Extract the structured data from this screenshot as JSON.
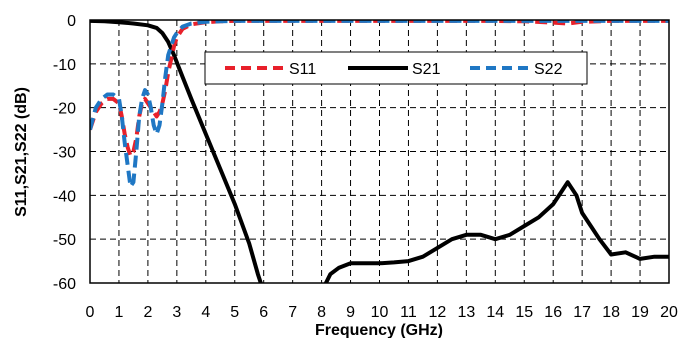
{
  "chart_data": {
    "type": "line",
    "xlabel": "Frequency (GHz)",
    "ylabel": "S11,S21,S22 (dB)",
    "xlim": [
      0,
      20
    ],
    "ylim": [
      -60,
      0
    ],
    "xticks": [
      0,
      1,
      2,
      3,
      4,
      5,
      6,
      7,
      8,
      9,
      10,
      11,
      12,
      13,
      14,
      15,
      16,
      17,
      18,
      19,
      20
    ],
    "yticks": [
      0,
      -10,
      -20,
      -30,
      -40,
      -50,
      -60
    ],
    "grid": true,
    "legend_position": "top-right",
    "series": [
      {
        "name": "S11",
        "color": "#e8202a",
        "style": "dashed",
        "x": [
          0,
          0.2,
          0.4,
          0.6,
          0.8,
          1.0,
          1.1,
          1.2,
          1.3,
          1.4,
          1.5,
          1.6,
          1.7,
          1.8,
          1.9,
          2.0,
          2.1,
          2.2,
          2.3,
          2.4,
          2.5,
          2.6,
          2.7,
          2.8,
          2.9,
          3.0,
          3.2,
          3.5,
          4.0,
          4.5,
          5,
          6,
          8,
          10,
          12,
          14,
          15,
          16,
          16.5,
          17,
          18,
          19,
          20
        ],
        "y": [
          -25,
          -21,
          -19,
          -18,
          -18,
          -19,
          -22,
          -26,
          -29,
          -31,
          -30,
          -27,
          -22,
          -19,
          -18,
          -19,
          -20,
          -21,
          -22,
          -21,
          -19,
          -16,
          -12,
          -9,
          -6,
          -4,
          -2,
          -1,
          -0.5,
          -0.3,
          -0.2,
          -0.2,
          -0.2,
          -0.2,
          -0.2,
          -0.2,
          -0.3,
          -0.6,
          -0.8,
          -0.4,
          -0.2,
          -0.2,
          -0.2
        ]
      },
      {
        "name": "S21",
        "color": "#000000",
        "style": "solid",
        "x": [
          0,
          0.5,
          1.0,
          1.5,
          2.0,
          2.3,
          2.5,
          2.7,
          2.9,
          3.2,
          3.5,
          4.0,
          4.5,
          5.0,
          5.5,
          5.8,
          6.0,
          8.0,
          8.3,
          8.6,
          9.0,
          9.5,
          10,
          10.5,
          11,
          11.5,
          12,
          12.5,
          13,
          13.5,
          14,
          14.5,
          15,
          15.5,
          16,
          16.3,
          16.5,
          16.8,
          17,
          17.3,
          17.6,
          18,
          18.5,
          19,
          19.5,
          20
        ],
        "y": [
          -0.2,
          -0.3,
          -0.5,
          -0.8,
          -1.2,
          -1.8,
          -3,
          -5,
          -8,
          -13,
          -18,
          -26,
          -34,
          -42,
          -51,
          -58,
          -62,
          -62,
          -58,
          -56.5,
          -55.5,
          -55.5,
          -55.5,
          -55.3,
          -55,
          -54,
          -52,
          -50,
          -49,
          -49,
          -50,
          -49,
          -47,
          -45,
          -42,
          -39,
          -37,
          -40,
          -44,
          -47,
          -50,
          -53.5,
          -53,
          -54.5,
          -54,
          -54
        ]
      },
      {
        "name": "S22",
        "color": "#1f77c4",
        "style": "dashed",
        "x": [
          0,
          0.2,
          0.4,
          0.6,
          0.8,
          1.0,
          1.1,
          1.2,
          1.3,
          1.4,
          1.5,
          1.6,
          1.7,
          1.8,
          1.9,
          2.0,
          2.1,
          2.2,
          2.3,
          2.4,
          2.5,
          2.6,
          2.7,
          2.8,
          2.9,
          3.0,
          3.2,
          3.5,
          4.0,
          4.5,
          5,
          6,
          8,
          10,
          12,
          14,
          16,
          18,
          20
        ],
        "y": [
          -25,
          -20,
          -18,
          -17,
          -17,
          -18,
          -22,
          -28,
          -33,
          -38,
          -37,
          -30,
          -22,
          -18,
          -16,
          -17,
          -20,
          -24,
          -26,
          -24,
          -19,
          -13,
          -8,
          -6,
          -4,
          -3,
          -1.5,
          -0.8,
          -0.4,
          -0.3,
          -0.2,
          -0.2,
          -0.2,
          -0.2,
          -0.2,
          -0.2,
          -0.2,
          -0.2,
          -0.2
        ]
      }
    ]
  }
}
